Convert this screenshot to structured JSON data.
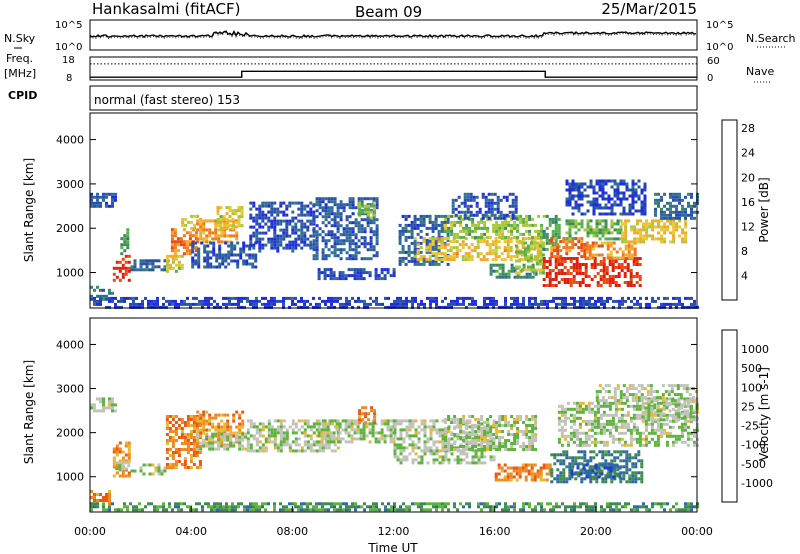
{
  "header": {
    "station": "Hankasalmi (fitACF)",
    "beam": "Beam 09",
    "date": "25/Mar/2015"
  },
  "noise_panel": {
    "left_label": "N.Sky",
    "right_label": "N.Search",
    "left_ticks": [
      "10^5",
      "10^0"
    ],
    "right_ticks": [
      "10^5",
      "10^0"
    ]
  },
  "freq_panel": {
    "left_label_1": "Freq.",
    "left_label_2": "[MHz]",
    "right_label": "Nave",
    "left_ticks": [
      "18",
      "8"
    ],
    "right_ticks": [
      "60",
      "0"
    ],
    "freq_segments": [
      {
        "start": 0,
        "end": 6,
        "level": 9.2
      },
      {
        "start": 6,
        "end": 18,
        "level": 11.8
      },
      {
        "start": 18,
        "end": 24,
        "level": 9.2
      }
    ],
    "nave_level": 42
  },
  "cpid": {
    "label": "CPID",
    "text": "normal (fast stereo) 153"
  },
  "chart_data": [
    {
      "type": "heatmap",
      "name": "power",
      "ylabel": "Slant Range [km]",
      "xlim": [
        0,
        24
      ],
      "ylim": [
        200,
        4600
      ],
      "yticks": [
        "1000",
        "2000",
        "3000",
        "4000"
      ],
      "colorbar": {
        "label": "Power [dB]",
        "ticks": [
          "4",
          "8",
          "12",
          "16",
          "20",
          "24",
          "28"
        ],
        "colors": [
          "#1f2de0",
          "#2a4fb0",
          "#2f6f96",
          "#3d8a5a",
          "#58b04a",
          "#a6c83a",
          "#e8c832",
          "#f5a82a",
          "#f0781e",
          "#ea4a14",
          "#e01e0a"
        ]
      },
      "regions": [
        {
          "t0": 0.9,
          "t1": 1.6,
          "r0": 800,
          "r1": 1400,
          "v": 0.95
        },
        {
          "t0": 1.2,
          "t1": 1.5,
          "r0": 1400,
          "r1": 2000,
          "v": 0.35
        },
        {
          "t0": 1.6,
          "t1": 3.1,
          "r0": 1050,
          "r1": 1300,
          "v": 0.2
        },
        {
          "t0": 3.0,
          "t1": 3.7,
          "r0": 1000,
          "r1": 1400,
          "v": 0.55
        },
        {
          "t0": 3.2,
          "t1": 4.2,
          "r0": 1400,
          "r1": 2000,
          "v": 0.75
        },
        {
          "t0": 3.6,
          "t1": 4.4,
          "r0": 2000,
          "r1": 2300,
          "v": 0.6
        },
        {
          "t0": 4.2,
          "t1": 5.8,
          "r0": 1700,
          "r1": 2200,
          "v": 0.7
        },
        {
          "t0": 5.0,
          "t1": 6.0,
          "r0": 2000,
          "r1": 2500,
          "v": 0.55
        },
        {
          "t0": 4.0,
          "t1": 6.5,
          "r0": 1100,
          "r1": 1700,
          "v": 0.15
        },
        {
          "t0": 6.3,
          "t1": 8.8,
          "r0": 1500,
          "r1": 2600,
          "v": 0.12
        },
        {
          "t0": 8.8,
          "t1": 11.4,
          "r0": 1300,
          "r1": 2700,
          "v": 0.16
        },
        {
          "t0": 10.6,
          "t1": 11.3,
          "r0": 2200,
          "r1": 2600,
          "v": 0.45
        },
        {
          "t0": 9.0,
          "t1": 12.0,
          "r0": 850,
          "r1": 1100,
          "v": 0.12
        },
        {
          "t0": 12.2,
          "t1": 14.2,
          "r0": 1200,
          "r1": 2300,
          "v": 0.18
        },
        {
          "t0": 12.8,
          "t1": 17.8,
          "r0": 1300,
          "r1": 1800,
          "v": 0.62
        },
        {
          "t0": 14.0,
          "t1": 17.8,
          "r0": 1800,
          "r1": 2300,
          "v": 0.45
        },
        {
          "t0": 14.3,
          "t1": 16.8,
          "r0": 2200,
          "r1": 2800,
          "v": 0.14
        },
        {
          "t0": 15.8,
          "t1": 17.6,
          "r0": 900,
          "r1": 1200,
          "v": 0.3
        },
        {
          "t0": 16.8,
          "t1": 17.9,
          "r0": 1000,
          "r1": 1700,
          "v": 0.48
        },
        {
          "t0": 17.9,
          "t1": 21.8,
          "r0": 700,
          "r1": 1350,
          "v": 0.93
        },
        {
          "t0": 17.9,
          "t1": 18.6,
          "r0": 1500,
          "r1": 2300,
          "v": 0.35
        },
        {
          "t0": 18.2,
          "t1": 19.6,
          "r0": 1350,
          "r1": 1800,
          "v": 0.8
        },
        {
          "t0": 19.6,
          "t1": 21.6,
          "r0": 1300,
          "r1": 1700,
          "v": 0.72
        },
        {
          "t0": 18.8,
          "t1": 21.0,
          "r0": 1750,
          "r1": 2200,
          "v": 0.42
        },
        {
          "t0": 21.0,
          "t1": 23.6,
          "r0": 1700,
          "r1": 2200,
          "v": 0.6
        },
        {
          "t0": 22.3,
          "t1": 24.0,
          "r0": 2200,
          "r1": 2800,
          "v": 0.2
        },
        {
          "t0": 18.8,
          "t1": 22.0,
          "r0": 2300,
          "r1": 3100,
          "v": 0.1
        },
        {
          "t0": 0.0,
          "t1": 1.0,
          "r0": 2500,
          "r1": 2800,
          "v": 0.16
        },
        {
          "t0": 0.0,
          "t1": 0.9,
          "r0": 400,
          "r1": 700,
          "v": 0.25
        },
        {
          "t0": 0.0,
          "t1": 24.0,
          "r0": 220,
          "r1": 450,
          "v": 0.08
        }
      ]
    },
    {
      "type": "heatmap",
      "name": "velocity",
      "xlabel": "Time UT",
      "ylabel": "Slant Range [km]",
      "xlim": [
        0,
        24
      ],
      "ylim": [
        200,
        4600
      ],
      "xticks": [
        "00:00",
        "04:00",
        "08:00",
        "12:00",
        "16:00",
        "20:00",
        "00:00"
      ],
      "yticks": [
        "1000",
        "2000",
        "3000",
        "4000"
      ],
      "colorbar": {
        "label": "Velocity [m s-1]",
        "ticks": [
          "1000",
          "500",
          "100",
          "25",
          "-25",
          "-100",
          "-500",
          "-1000"
        ],
        "colors": [
          "#1f3fc8",
          "#2d68a8",
          "#3f8a52",
          "#5cb43c",
          "#c2c2bb",
          "#e8b830",
          "#f08a20",
          "#ea5814",
          "#e01e0a"
        ]
      },
      "regions": [
        {
          "t0": 0.9,
          "t1": 1.5,
          "r0": 1000,
          "r1": 1800,
          "v": 0.72
        },
        {
          "t0": 1.0,
          "t1": 1.5,
          "r0": 1150,
          "r1": 1350,
          "v": 0.45
        },
        {
          "t0": 0.0,
          "t1": 0.8,
          "r0": 400,
          "r1": 700,
          "v": 0.75
        },
        {
          "t0": 1.6,
          "t1": 3.2,
          "r0": 1050,
          "r1": 1300,
          "v": 0.47
        },
        {
          "t0": 3.0,
          "t1": 4.4,
          "r0": 1200,
          "r1": 2400,
          "v": 0.75
        },
        {
          "t0": 4.2,
          "t1": 6.0,
          "r0": 1700,
          "r1": 2500,
          "v": 0.7
        },
        {
          "t0": 4.2,
          "t1": 6.2,
          "r0": 1600,
          "r1": 2000,
          "v": 0.47
        },
        {
          "t0": 6.2,
          "t1": 9.8,
          "r0": 1600,
          "r1": 2300,
          "v": 0.47
        },
        {
          "t0": 9.0,
          "t1": 12.0,
          "r0": 1800,
          "r1": 2300,
          "v": 0.47
        },
        {
          "t0": 10.6,
          "t1": 11.3,
          "r0": 2200,
          "r1": 2600,
          "v": 0.76
        },
        {
          "t0": 12.0,
          "t1": 16.0,
          "r0": 1300,
          "r1": 2300,
          "v": 0.47
        },
        {
          "t0": 14.0,
          "t1": 17.6,
          "r0": 1600,
          "r1": 2400,
          "v": 0.47
        },
        {
          "t0": 16.0,
          "t1": 18.2,
          "r0": 900,
          "r1": 1300,
          "v": 0.74
        },
        {
          "t0": 18.2,
          "t1": 21.8,
          "r0": 900,
          "r1": 1600,
          "v": 0.23
        },
        {
          "t0": 19.0,
          "t1": 21.0,
          "r0": 1000,
          "r1": 1300,
          "v": 0.16
        },
        {
          "t0": 18.5,
          "t1": 24.0,
          "r0": 1700,
          "r1": 2700,
          "v": 0.47
        },
        {
          "t0": 21.8,
          "t1": 24.0,
          "r0": 2300,
          "r1": 2800,
          "v": 0.45
        },
        {
          "t0": 20.0,
          "t1": 24.0,
          "r0": 2700,
          "r1": 3100,
          "v": 0.47
        },
        {
          "t0": 0.0,
          "t1": 1.0,
          "r0": 2500,
          "r1": 2800,
          "v": 0.47
        },
        {
          "t0": 0.0,
          "t1": 24.0,
          "r0": 220,
          "r1": 420,
          "v": 0.3
        }
      ]
    }
  ]
}
